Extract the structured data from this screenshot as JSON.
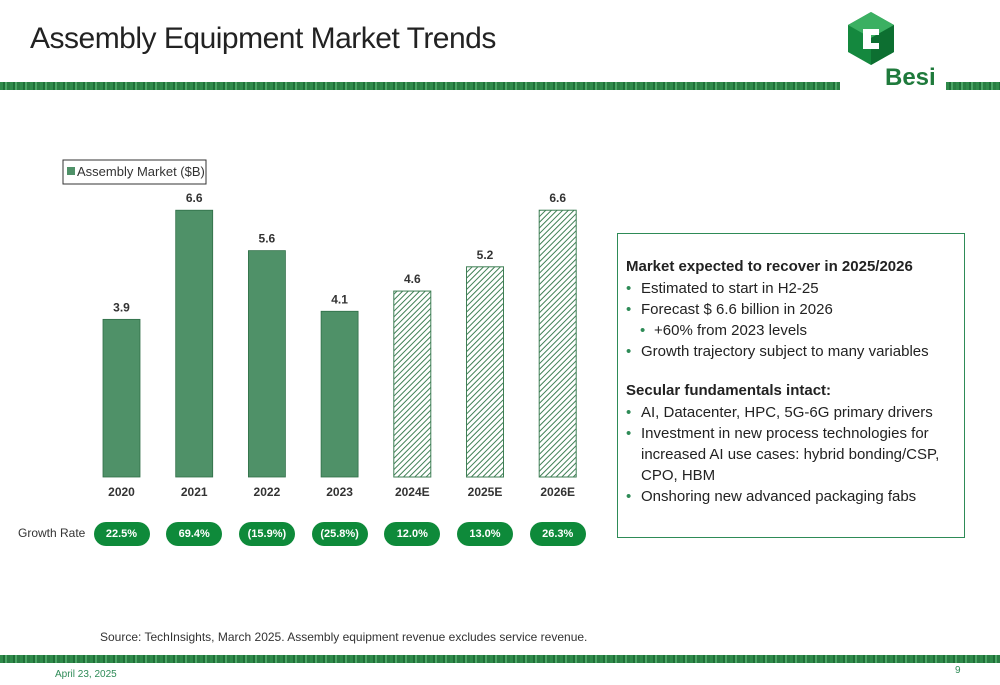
{
  "page": {
    "title": "Assembly Equipment Market Trends",
    "logo_text": "Besi",
    "growth_label": "Growth Rate",
    "source": "Source: TechInsights, March 2025. Assembly equipment revenue excludes service revenue.",
    "date": "April 23, 2025",
    "page_number": "9"
  },
  "colors": {
    "bar_solid": "#4f9168",
    "bar_hatch": "#3f7f55",
    "accent": "#0e8a3a"
  },
  "chart_data": {
    "type": "bar",
    "title": "",
    "xlabel": "",
    "ylabel": "",
    "legend": "top-left",
    "grid": false,
    "ylim": [
      0,
      7.1
    ],
    "categories": [
      "2020",
      "2021",
      "2022",
      "2023",
      "2024E",
      "2025E",
      "2026E"
    ],
    "series": [
      {
        "name": "Assembly Market ($B)",
        "values": [
          3.9,
          6.6,
          5.6,
          4.1,
          4.6,
          5.2,
          6.6
        ],
        "labels": [
          "3.9",
          "6.6",
          "5.6",
          "4.1",
          "4.6",
          "5.2",
          "6.6"
        ],
        "forecast": [
          false,
          false,
          false,
          false,
          true,
          true,
          true
        ]
      }
    ],
    "growth_rates": [
      "22.5%",
      "69.4%",
      "(15.9%)",
      "(25.8%)",
      "12.0%",
      "13.0%",
      "26.3%"
    ]
  },
  "textbox": {
    "heading1": "Market expected to recover in 2025/2026",
    "items1": [
      {
        "text": "Estimated to start in H2-25",
        "sub": false
      },
      {
        "text": "Forecast $ 6.6 billion in 2026",
        "sub": false
      },
      {
        "text": "+60% from 2023 levels",
        "sub": true
      },
      {
        "text": "Growth trajectory subject to many variables",
        "sub": false
      }
    ],
    "heading2": "Secular fundamentals intact:",
    "items2": [
      {
        "text": "AI, Datacenter, HPC, 5G-6G primary drivers"
      },
      {
        "text": "Investment in new process technologies for increased AI use cases: hybrid bonding/CSP, CPO, HBM"
      },
      {
        "text": "Onshoring new advanced packaging fabs"
      }
    ]
  }
}
